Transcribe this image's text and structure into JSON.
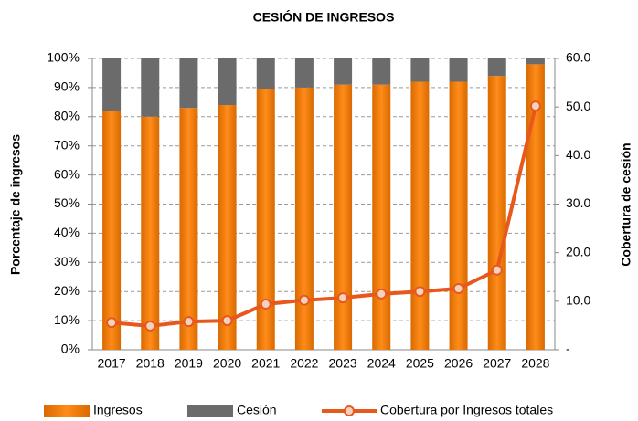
{
  "chart_data": {
    "type": "bar",
    "stacked": true,
    "title": "CESIÓN DE INGRESOS",
    "y_label": "Porcentaje de ingresos",
    "y2_label": "Cobertura de cesión",
    "categories": [
      "2017",
      "2018",
      "2019",
      "2020",
      "2021",
      "2022",
      "2023",
      "2024",
      "2025",
      "2026",
      "2027",
      "2028"
    ],
    "series": [
      {
        "name": "Ingresos",
        "type": "bar",
        "color": "#f07c00",
        "values": [
          82,
          80,
          83,
          84,
          89.5,
          90,
          91,
          91,
          92,
          92,
          94,
          98
        ]
      },
      {
        "name": "Cesión",
        "type": "bar",
        "color": "#6b6b6b",
        "values": [
          18,
          20,
          17,
          16,
          10.5,
          10,
          9,
          9,
          8,
          8,
          6,
          2
        ]
      },
      {
        "name": "Cobertura por Ingresos totales",
        "type": "line",
        "axis": "y2",
        "color": "#e8581c",
        "values": [
          5.6,
          4.9,
          5.8,
          6.0,
          9.4,
          10.2,
          10.7,
          11.5,
          12.0,
          12.6,
          16.4,
          50.2
        ]
      }
    ],
    "ylim": [
      0,
      100
    ],
    "yticks": [
      {
        "value": 0,
        "label": "0%"
      },
      {
        "value": 10,
        "label": "10%"
      },
      {
        "value": 20,
        "label": "20%"
      },
      {
        "value": 30,
        "label": "30%"
      },
      {
        "value": 40,
        "label": "40%"
      },
      {
        "value": 50,
        "label": "50%"
      },
      {
        "value": 60,
        "label": "60%"
      },
      {
        "value": 70,
        "label": "70%"
      },
      {
        "value": 80,
        "label": "80%"
      },
      {
        "value": 90,
        "label": "90%"
      },
      {
        "value": 100,
        "label": "100%"
      }
    ],
    "y2lim": [
      0,
      60
    ],
    "y2ticks": [
      {
        "value": 0,
        "label": "-"
      },
      {
        "value": 10,
        "label": "10.0"
      },
      {
        "value": 20,
        "label": "20.0"
      },
      {
        "value": 30,
        "label": "30.0"
      },
      {
        "value": 40,
        "label": "40.0"
      },
      {
        "value": 50,
        "label": "50.0"
      },
      {
        "value": 60,
        "label": "60.0"
      }
    ],
    "grid": true,
    "legend": "bottom"
  }
}
